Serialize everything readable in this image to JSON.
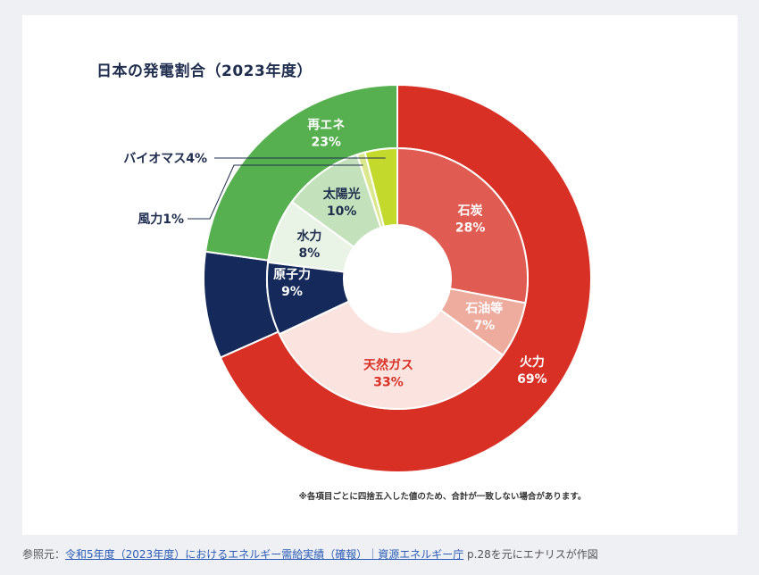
{
  "title": "日本の発電割合（2023年度）",
  "footnote": "※各項目ごとに四捨五入した値のため、合計が一致しない場合があります。",
  "source": {
    "prefix": "参照元：",
    "link_text": "令和5年度（2023年度）におけるエネルギー需給実績（確報）｜資源エネルギー庁",
    "suffix": " p.28を元にエナリスが作図"
  },
  "chart_data": {
    "type": "pie",
    "title": "日本の発電割合（2023年度）",
    "unit": "%",
    "outer": [
      {
        "label": "火力",
        "value": 69,
        "value_text": "69%",
        "color": "#d93026",
        "text_color": "#ffffff"
      },
      {
        "label": "原子力",
        "value": 9,
        "value_text": "9%",
        "color": "#152a5a",
        "text_color": "#ffffff"
      },
      {
        "label": "再エネ",
        "value": 23,
        "value_text": "23%",
        "color": "#57b04f",
        "text_color": "#ffffff"
      }
    ],
    "inner": [
      {
        "label": "石炭",
        "value": 28,
        "value_text": "28%",
        "color": "#e05c52",
        "text_color": "#ffffff"
      },
      {
        "label": "石油等",
        "value": 7,
        "value_text": "7%",
        "color": "#eeac9f",
        "text_color": "#ffffff"
      },
      {
        "label": "天然ガス",
        "value": 33,
        "value_text": "33%",
        "color": "#fbe4e0",
        "text_color": "#d93026"
      },
      {
        "label": "原子力",
        "value": 9,
        "value_text": "",
        "color": "#152a5a",
        "text_color": "#ffffff"
      },
      {
        "label": "水力",
        "value": 8,
        "value_text": "8%",
        "color": "#e9f3e6",
        "text_color": "#1f2d4e"
      },
      {
        "label": "太陽光",
        "value": 10,
        "value_text": "10%",
        "color": "#c3e2bc",
        "text_color": "#1f2d4e"
      },
      {
        "label": "風力",
        "value": 1,
        "value_text": "",
        "color": "#dbe88d",
        "text_color": "#1f2d4e"
      },
      {
        "label": "バイオマス",
        "value": 4,
        "value_text": "",
        "color": "#c3d92b",
        "text_color": "#1f2d4e"
      }
    ],
    "callouts": [
      {
        "label": "バイオマス4%",
        "target": "バイオマス"
      },
      {
        "label": "風力1%",
        "target": "風力"
      }
    ]
  }
}
